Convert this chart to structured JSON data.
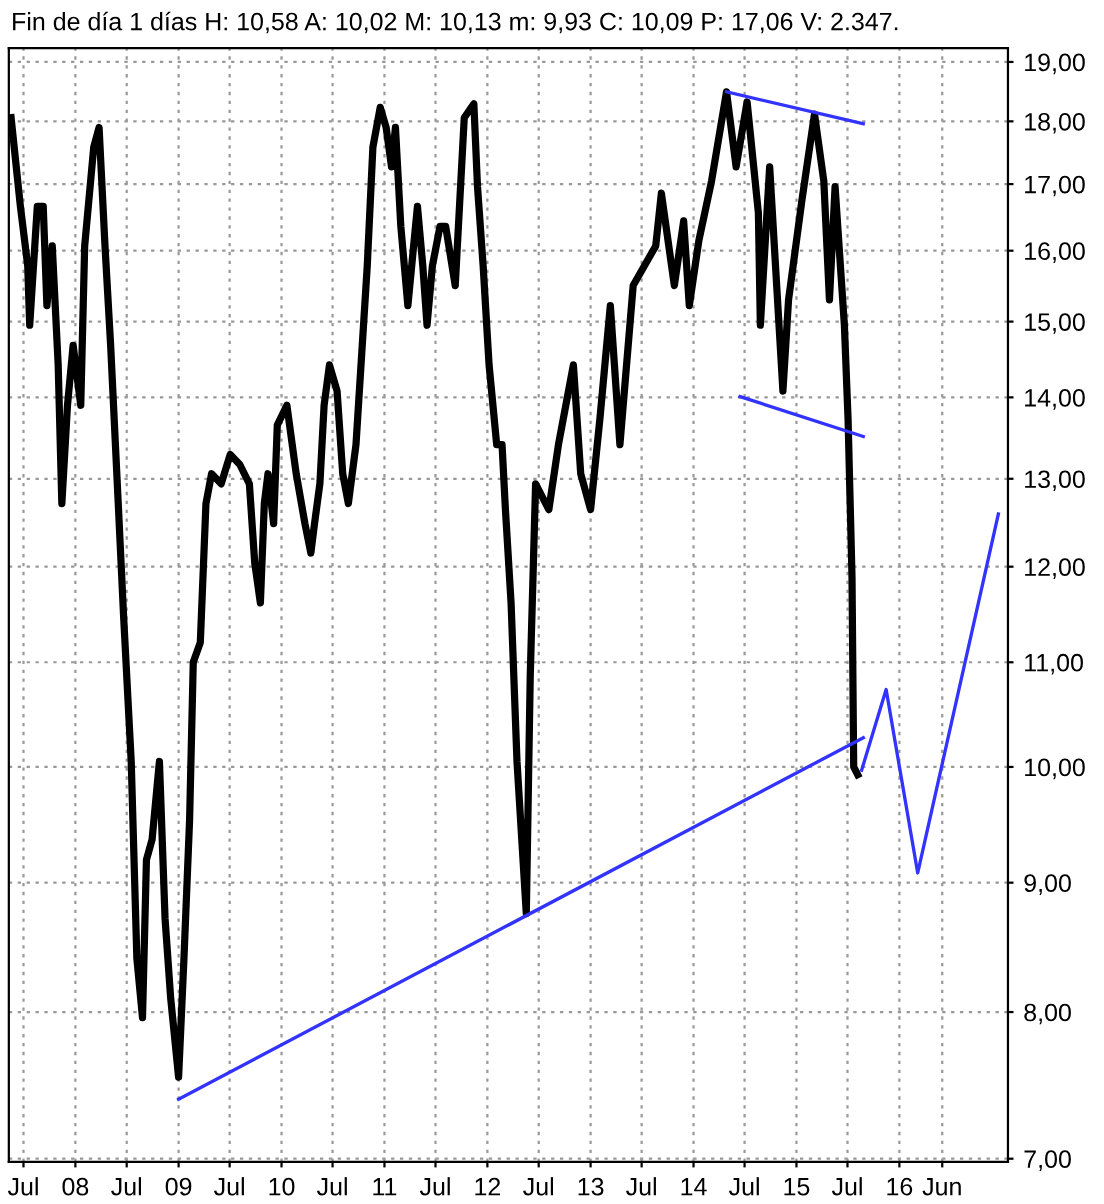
{
  "chart_data": {
    "type": "line",
    "title": "Fin de día 1 días H: 10,58 A: 10,02 M: 10,13 m: 9,93 C: 10,09 P: 17,06 V: 2.347.",
    "log": "y",
    "grid": true,
    "marker": "none",
    "line_style": "solid",
    "xlim": [
      "2007-05-10",
      "2017-01-20"
    ],
    "xticks": [
      {
        "value": "2007-07-01",
        "label": "Jul"
      },
      {
        "value": "2008-01-01",
        "label": "08"
      },
      {
        "value": "2008-07-01",
        "label": "Jul"
      },
      {
        "value": "2009-01-01",
        "label": "09"
      },
      {
        "value": "2009-07-01",
        "label": "Jul"
      },
      {
        "value": "2010-01-01",
        "label": "10"
      },
      {
        "value": "2010-07-01",
        "label": "Jul"
      },
      {
        "value": "2011-01-01",
        "label": "11"
      },
      {
        "value": "2011-07-01",
        "label": "Jul"
      },
      {
        "value": "2012-01-01",
        "label": "12"
      },
      {
        "value": "2012-07-01",
        "label": "Jul"
      },
      {
        "value": "2013-01-01",
        "label": "13"
      },
      {
        "value": "2013-07-01",
        "label": "Jul"
      },
      {
        "value": "2014-01-01",
        "label": "14"
      },
      {
        "value": "2014-07-01",
        "label": "Jul"
      },
      {
        "value": "2015-01-01",
        "label": "15"
      },
      {
        "value": "2015-07-01",
        "label": "Jul"
      },
      {
        "value": "2016-01-01",
        "label": "16"
      },
      {
        "value": "2016-06-01",
        "label": "Jun"
      }
    ],
    "ylim": [
      6.98,
      19.24
    ],
    "yticks": [
      {
        "value": 7,
        "label": "7,00"
      },
      {
        "value": 8,
        "label": "8,00"
      },
      {
        "value": 9,
        "label": "9,00"
      },
      {
        "value": 10,
        "label": "10,00"
      },
      {
        "value": 11,
        "label": "11,00"
      },
      {
        "value": 12,
        "label": "12,00"
      },
      {
        "value": 13,
        "label": "13,00"
      },
      {
        "value": 14,
        "label": "14,00"
      },
      {
        "value": 15,
        "label": "15,00"
      },
      {
        "value": 16,
        "label": "16,00"
      },
      {
        "value": 17,
        "label": "17,00"
      },
      {
        "value": 18,
        "label": "18,00"
      },
      {
        "value": 19,
        "label": "19,00"
      }
    ],
    "series": [
      {
        "color": "#000000",
        "x": [
          "2007-05-18",
          "2007-06-20",
          "2007-07-16",
          "2007-07-23",
          "2007-08-19",
          "2007-09-09",
          "2007-09-22",
          "2007-10-11",
          "2007-11-01",
          "2007-11-14",
          "2007-12-04",
          "2007-12-24",
          "2008-01-20",
          "2008-02-03",
          "2008-03-06",
          "2008-03-25",
          "2008-04-15",
          "2008-05-05",
          "2008-06-01",
          "2008-06-20",
          "2008-07-17",
          "2008-08-06",
          "2008-08-26",
          "2008-09-09",
          "2008-09-29",
          "2008-10-25",
          "2008-11-14",
          "2008-12-04",
          "2009-01-01",
          "2009-01-20",
          "2009-02-09",
          "2009-02-22",
          "2009-03-19",
          "2009-04-08",
          "2009-04-28",
          "2009-06-01",
          "2009-07-03",
          "2009-08-06",
          "2009-09-09",
          "2009-09-28",
          "2009-10-18",
          "2009-11-01",
          "2009-11-14",
          "2009-12-04",
          "2009-12-17",
          "2010-01-20",
          "2010-02-22",
          "2010-03-25",
          "2010-04-15",
          "2010-04-28",
          "2010-05-17",
          "2010-06-01",
          "2010-06-20",
          "2010-07-17",
          "2010-08-06",
          "2010-08-26",
          "2010-09-22",
          "2010-11-01",
          "2010-11-21",
          "2010-12-17",
          "2011-01-07",
          "2011-01-26",
          "2011-02-09",
          "2011-02-28",
          "2011-03-25",
          "2011-04-28",
          "2011-05-17",
          "2011-06-01",
          "2011-06-20",
          "2011-07-17",
          "2011-08-06",
          "2011-09-09",
          "2011-10-11",
          "2011-11-14",
          "2011-11-27",
          "2011-12-17",
          "2012-01-07",
          "2012-02-03",
          "2012-02-22",
          "2012-03-05",
          "2012-03-25",
          "2012-04-15",
          "2012-05-18",
          "2012-06-01",
          "2012-06-20",
          "2012-08-06",
          "2012-09-09",
          "2012-11-01",
          "2012-11-27",
          "2013-01-01",
          "2013-02-03",
          "2013-03-12",
          "2013-04-15",
          "2013-06-01",
          "2013-08-20",
          "2013-09-09",
          "2013-10-25",
          "2013-11-27",
          "2013-12-17",
          "2014-01-20",
          "2014-03-06",
          "2014-04-28",
          "2014-06-01",
          "2014-07-10",
          "2014-08-19",
          "2014-08-26",
          "2014-09-28",
          "2014-11-14",
          "2014-12-04",
          "2015-01-20",
          "2015-03-06",
          "2015-04-08",
          "2015-04-28",
          "2015-05-18",
          "2015-06-20",
          "2015-07-03",
          "2015-07-17",
          "2015-07-23",
          "2015-08-06"
        ],
        "values": [
          18.06,
          16.66,
          15.78,
          14.95,
          16.66,
          16.66,
          15.22,
          16.07,
          14.42,
          12.71,
          13.9,
          14.68,
          13.9,
          16.07,
          17.58,
          17.9,
          16.07,
          14.68,
          12.71,
          11.47,
          10.05,
          8.4,
          7.96,
          9.19,
          9.36,
          10.05,
          8.71,
          8.1,
          7.54,
          8.4,
          9.53,
          11.0,
          11.2,
          12.71,
          13.06,
          12.94,
          13.29,
          13.17,
          12.94,
          12.04,
          11.61,
          12.71,
          13.06,
          12.48,
          13.65,
          13.9,
          13.06,
          12.48,
          12.15,
          12.48,
          12.94,
          13.9,
          14.42,
          14.08,
          13.06,
          12.71,
          13.41,
          15.78,
          17.58,
          18.23,
          17.9,
          17.27,
          17.9,
          16.36,
          15.22,
          16.66,
          15.78,
          14.95,
          15.78,
          16.36,
          16.36,
          15.5,
          18.06,
          18.29,
          16.96,
          15.78,
          14.42,
          13.41,
          13.41,
          12.64,
          11.61,
          10.05,
          8.75,
          10.87,
          12.94,
          12.64,
          13.41,
          14.42,
          13.06,
          12.64,
          13.73,
          15.22,
          13.41,
          15.5,
          16.07,
          16.86,
          15.5,
          16.44,
          15.22,
          16.15,
          17.05,
          18.49,
          17.27,
          18.32,
          16.56,
          14.95,
          17.27,
          14.08,
          15.3,
          16.74,
          18.12,
          17.05,
          15.3,
          16.96,
          14.95,
          13.73,
          11.89,
          10.0,
          9.93
        ]
      },
      {
        "color": "#3333ff",
        "x": [
          "2009-01-01",
          "2015-08-26"
        ],
        "values": [
          7.39,
          10.27
        ]
      },
      {
        "color": "#3333ff",
        "x": [
          "2014-04-28",
          "2015-08-26"
        ],
        "values": [
          18.49,
          17.96
        ]
      },
      {
        "color": "#3333ff",
        "x": [
          "2014-06-15",
          "2015-08-26"
        ],
        "values": [
          14.01,
          13.51
        ]
      },
      {
        "color": "#3333ff",
        "x": [
          "2015-08-20",
          "2015-11-15",
          "2016-03-06",
          "2016-12-17"
        ],
        "values": [
          9.97,
          10.73,
          9.08,
          12.59
        ]
      }
    ]
  }
}
